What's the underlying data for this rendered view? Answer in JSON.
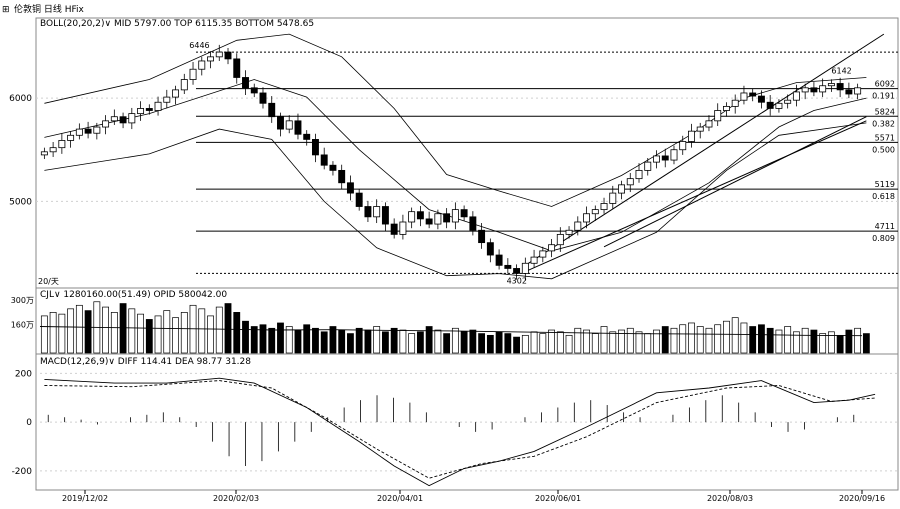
{
  "title_bar": {
    "text": "伦敦铜 日线 HFix",
    "icon": "grid-icon"
  },
  "boll_header": "BOLL(20,20,2)∨ MID 5797.00 TOP 6115.35 BOTTOM 5478.65",
  "vol_header": "CJL∨ 1280160.00(51.49) OPID 580042.00",
  "macd_header": "MACD(12,26,9)∨ DIFF 114.41 DEA 98.77 31.28",
  "colors": {
    "candle": "#000000",
    "fib": "#000000",
    "grid": "#d0d0d0",
    "boll": "#000000"
  },
  "chart_data": [
    {
      "type": "candlestick",
      "title": "",
      "y_ticks": [
        6000,
        5000
      ],
      "ylim": [
        4180,
        6660
      ],
      "x_ticks": [
        "2019/12/02",
        "2020/02/03",
        "2020/04/01",
        "2020/06/01",
        "2020/08/03",
        "2020/09/16"
      ],
      "annotations": {
        "high_label": "6446",
        "low_label": "4302",
        "last_high_label": "6142",
        "left_label": "20/天"
      },
      "fib_levels": [
        {
          "price": 6092,
          "ratio": "0.191"
        },
        {
          "price": 5824,
          "ratio": "0.382"
        },
        {
          "price": 5571,
          "ratio": "0.500"
        },
        {
          "price": 5119,
          "ratio": "0.618"
        },
        {
          "price": 4711,
          "ratio": "0.809"
        }
      ],
      "top_dotted": 6446,
      "bottom_dotted": 4302,
      "close": [
        5480,
        5520,
        5590,
        5640,
        5700,
        5660,
        5720,
        5780,
        5820,
        5760,
        5850,
        5900,
        5880,
        5960,
        6010,
        6080,
        6180,
        6280,
        6360,
        6400,
        6446,
        6380,
        6200,
        6100,
        6050,
        5950,
        5820,
        5700,
        5780,
        5650,
        5600,
        5450,
        5350,
        5300,
        5180,
        5080,
        4950,
        4850,
        4950,
        4780,
        4680,
        4800,
        4900,
        4830,
        4780,
        4880,
        4800,
        4920,
        4850,
        4720,
        4600,
        4480,
        4380,
        4350,
        4302,
        4400,
        4460,
        4520,
        4580,
        4680,
        4720,
        4800,
        4880,
        4920,
        4980,
        5080,
        5160,
        5220,
        5300,
        5380,
        5440,
        5400,
        5500,
        5580,
        5680,
        5720,
        5780,
        5880,
        5920,
        5980,
        6050,
        6020,
        5960,
        5900,
        5950,
        5980,
        6060,
        6100,
        6060,
        6120,
        6142,
        6080,
        6040,
        6100
      ],
      "bb_mid_points": [
        [
          0,
          5620
        ],
        [
          12,
          5850
        ],
        [
          24,
          6180
        ],
        [
          30,
          6010
        ],
        [
          36,
          5500
        ],
        [
          44,
          4920
        ],
        [
          52,
          4700
        ],
        [
          58,
          4520
        ],
        [
          66,
          4700
        ],
        [
          76,
          5180
        ],
        [
          84,
          5720
        ],
        [
          88,
          5880
        ],
        [
          94,
          6000
        ]
      ],
      "bb_top_points": [
        [
          0,
          5950
        ],
        [
          12,
          6180
        ],
        [
          22,
          6560
        ],
        [
          28,
          6620
        ],
        [
          34,
          6400
        ],
        [
          40,
          5900
        ],
        [
          46,
          5260
        ],
        [
          52,
          5100
        ],
        [
          58,
          4950
        ],
        [
          66,
          5250
        ],
        [
          74,
          5650
        ],
        [
          80,
          6000
        ],
        [
          86,
          6150
        ],
        [
          94,
          6200
        ]
      ],
      "bb_bot_points": [
        [
          0,
          5300
        ],
        [
          12,
          5460
        ],
        [
          20,
          5700
        ],
        [
          26,
          5600
        ],
        [
          32,
          5000
        ],
        [
          38,
          4550
        ],
        [
          46,
          4280
        ],
        [
          52,
          4300
        ],
        [
          58,
          4250
        ],
        [
          62,
          4400
        ],
        [
          70,
          4700
        ],
        [
          78,
          5300
        ],
        [
          84,
          5640
        ],
        [
          94,
          5760
        ]
      ],
      "channel_lines": [
        [
          [
            55,
            4380
          ],
          [
            96,
            6620
          ]
        ],
        [
          [
            55,
            4320
          ],
          [
            94,
            5780
          ]
        ],
        [
          [
            64,
            4560
          ],
          [
            94,
            5820
          ]
        ]
      ]
    },
    {
      "type": "bar",
      "title": "",
      "y_ticks": [
        "300万",
        "160万"
      ],
      "ylim": [
        0,
        3000000
      ],
      "volume": [
        2100000,
        2300000,
        2200000,
        2500000,
        2700000,
        2400000,
        2900000,
        2600000,
        2300000,
        2800000,
        2500000,
        2200000,
        1900000,
        2100000,
        2400000,
        2000000,
        2300000,
        2700000,
        2500000,
        2100000,
        2600000,
        2800000,
        2300000,
        1800000,
        1500000,
        1600000,
        1400000,
        1700000,
        1500000,
        1300000,
        1600000,
        1400000,
        1200000,
        1500000,
        1300000,
        1100000,
        1400000,
        1300000,
        1500000,
        1200000,
        1400000,
        1300000,
        1100000,
        1200000,
        1500000,
        1300000,
        1100000,
        1400000,
        1200000,
        1300000,
        1100000,
        1000000,
        1200000,
        1100000,
        900000,
        1000000,
        1200000,
        1100000,
        1300000,
        1200000,
        1000000,
        1400000,
        1300000,
        1100000,
        1500000,
        1200000,
        1300000,
        1400000,
        1200000,
        1100000,
        1300000,
        1500000,
        1400000,
        1600000,
        1700000,
        1500000,
        1400000,
        1600000,
        1800000,
        2000000,
        1700000,
        1500000,
        1600000,
        1400000,
        1300000,
        1500000,
        1200000,
        1400000,
        1300000,
        1100000,
        1200000,
        1000000,
        1300000,
        1400000,
        1100000
      ],
      "oi_line": [
        1500000,
        1450000,
        1400000,
        1350000,
        1300000,
        1320000,
        1280000,
        1250000,
        1200000,
        1150000,
        1100000,
        1080000,
        1050000,
        1000000,
        980000
      ]
    },
    {
      "type": "line",
      "title": "",
      "y_ticks": [
        200,
        0,
        -200
      ],
      "ylim": [
        -270,
        230
      ],
      "diff_points": [
        [
          0,
          175
        ],
        [
          8,
          160
        ],
        [
          14,
          160
        ],
        [
          20,
          180
        ],
        [
          24,
          160
        ],
        [
          30,
          60
        ],
        [
          36,
          -80
        ],
        [
          40,
          -180
        ],
        [
          44,
          -260
        ],
        [
          48,
          -190
        ],
        [
          52,
          -160
        ],
        [
          56,
          -120
        ],
        [
          62,
          -20
        ],
        [
          70,
          120
        ],
        [
          76,
          140
        ],
        [
          82,
          170
        ],
        [
          88,
          80
        ],
        [
          92,
          90
        ],
        [
          95,
          114
        ]
      ],
      "dea_points": [
        [
          0,
          150
        ],
        [
          10,
          145
        ],
        [
          20,
          170
        ],
        [
          26,
          140
        ],
        [
          32,
          20
        ],
        [
          38,
          -110
        ],
        [
          44,
          -230
        ],
        [
          50,
          -170
        ],
        [
          56,
          -140
        ],
        [
          62,
          -60
        ],
        [
          70,
          80
        ],
        [
          78,
          140
        ],
        [
          84,
          150
        ],
        [
          90,
          85
        ],
        [
          95,
          99
        ]
      ],
      "histogram": [
        30,
        20,
        10,
        -10,
        0,
        20,
        30,
        40,
        20,
        -20,
        -80,
        -140,
        -180,
        -160,
        -120,
        -80,
        -40,
        20,
        60,
        90,
        110,
        100,
        80,
        40,
        0,
        -20,
        -40,
        -30,
        0,
        20,
        40,
        60,
        80,
        90,
        70,
        40,
        20,
        0,
        30,
        60,
        90,
        110,
        80,
        40,
        -20,
        -40,
        -30,
        0,
        20,
        30
      ]
    }
  ]
}
